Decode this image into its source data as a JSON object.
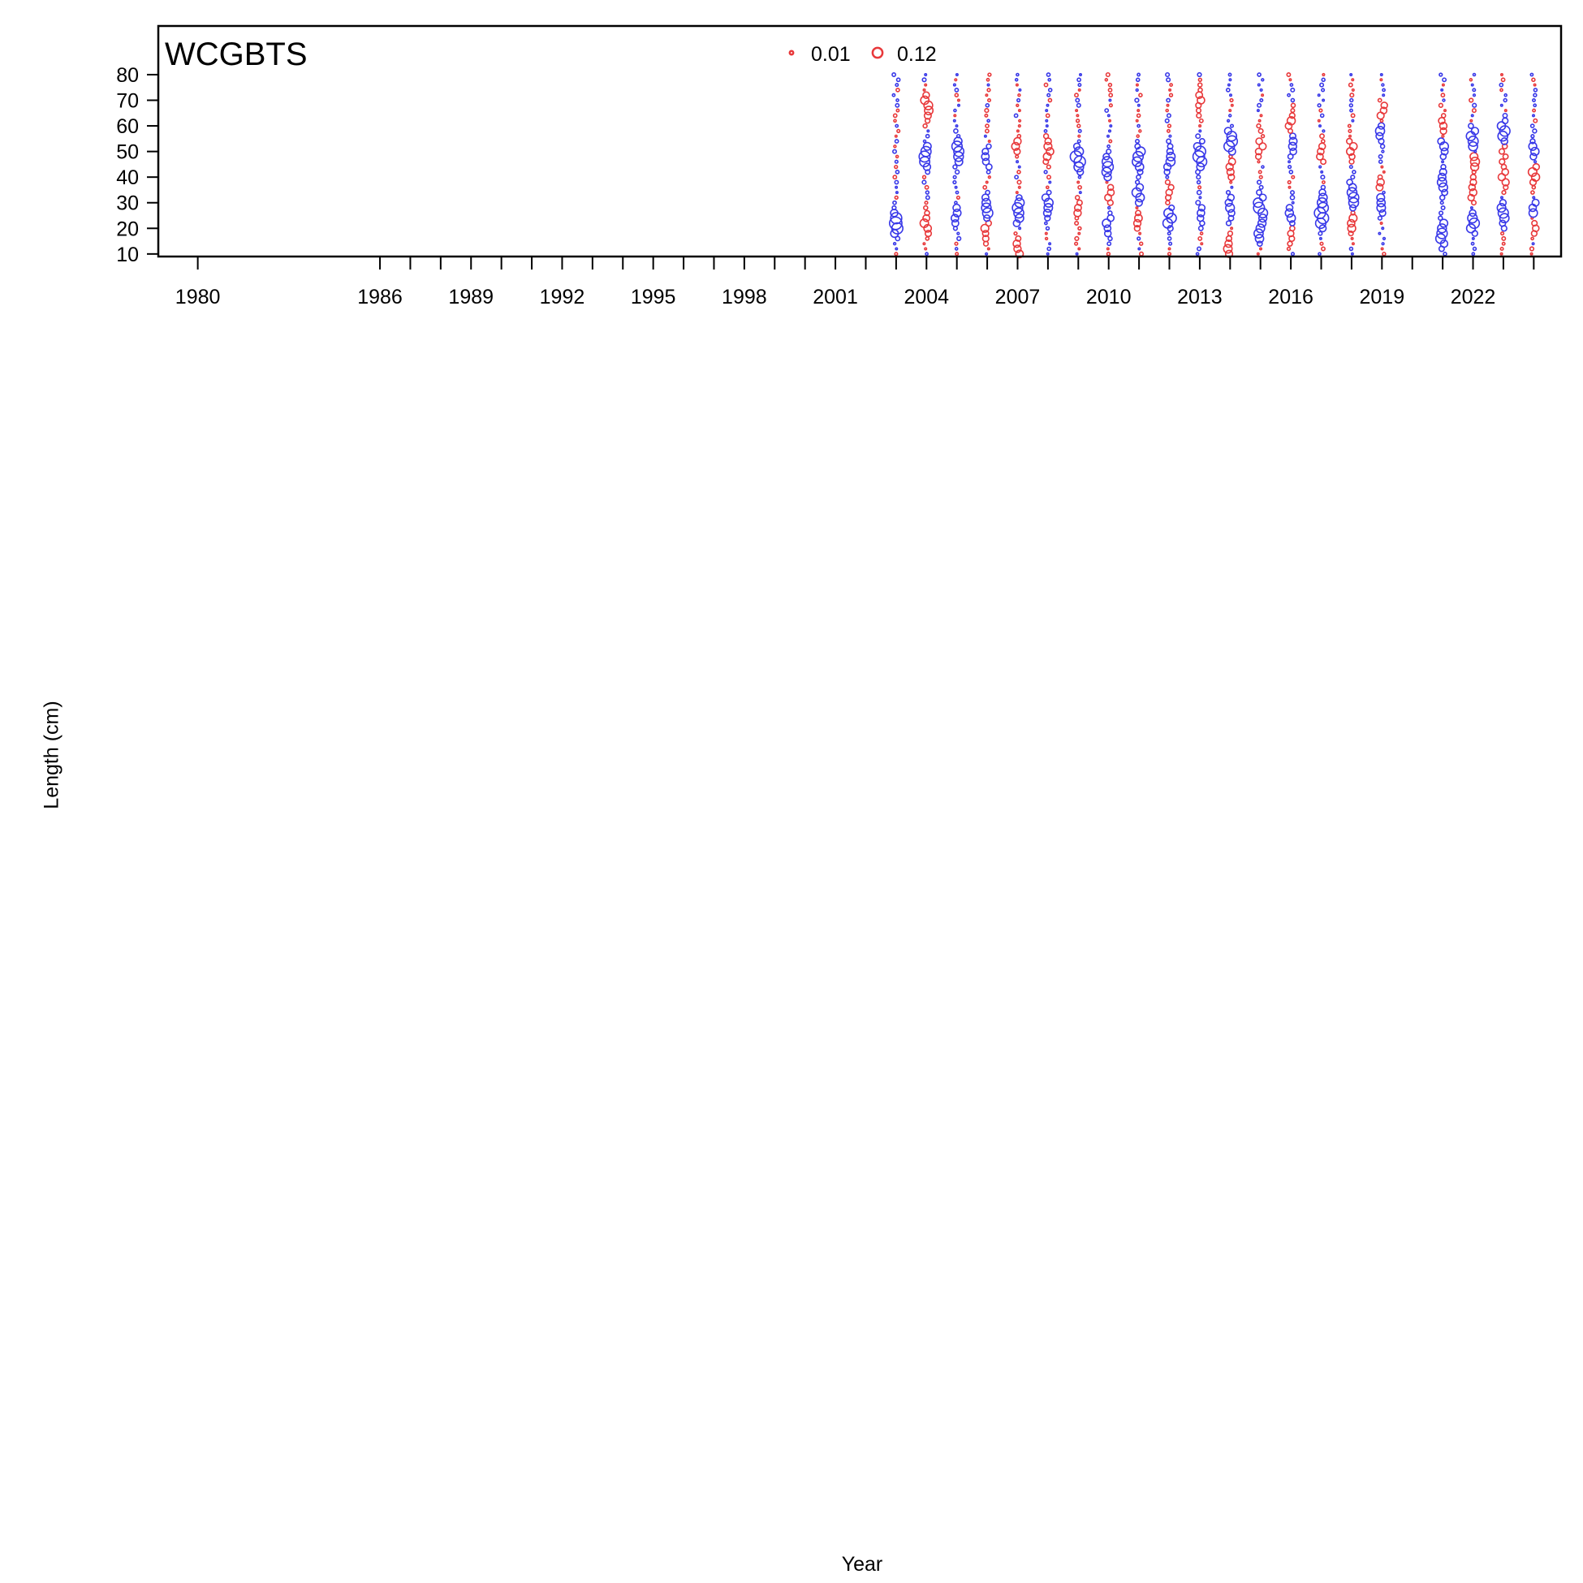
{
  "chart_data": {
    "type": "bubble",
    "title": "WCGBTS",
    "xlabel": "Year",
    "ylabel": "Length (cm)",
    "x_tick_labels": [
      "1980",
      "1986",
      "1989",
      "1992",
      "1995",
      "1998",
      "2001",
      "2004",
      "2007",
      "2010",
      "2013",
      "2016",
      "2019",
      "2022"
    ],
    "x_tick_positions": [
      1980,
      1986,
      1989,
      1992,
      1995,
      1998,
      2001,
      2004,
      2007,
      2010,
      2013,
      2016,
      2019,
      2022
    ],
    "x_minor_ticks": [
      1980,
      1986,
      1987,
      1988,
      1989,
      1990,
      1991,
      1992,
      1993,
      1994,
      1995,
      1996,
      1997,
      1998,
      1999,
      2000,
      2001,
      2002,
      2003,
      2004,
      2005,
      2006,
      2007,
      2008,
      2009,
      2010,
      2011,
      2012,
      2013,
      2014,
      2015,
      2016,
      2017,
      2018,
      2019,
      2020,
      2021,
      2022,
      2023,
      2024
    ],
    "xlim": [
      1978.7,
      2024.9
    ],
    "y_ticks": [
      10,
      20,
      30,
      40,
      50,
      60,
      70,
      80
    ],
    "ylim": [
      9,
      99
    ],
    "legend": {
      "placement": "top-center",
      "entries": [
        "0.01",
        "0.12"
      ]
    },
    "colors": {
      "negative": "#e8383a",
      "positive": "#3838e8"
    },
    "length_bins": [
      10,
      12,
      14,
      16,
      18,
      20,
      22,
      24,
      26,
      28,
      30,
      32,
      34,
      36,
      38,
      40,
      42,
      44,
      46,
      48,
      50,
      52,
      54,
      56,
      58,
      60,
      62,
      64,
      66,
      68,
      70,
      72,
      74,
      76,
      78,
      80
    ],
    "years": [
      2003,
      2004,
      2005,
      2006,
      2007,
      2008,
      2009,
      2010,
      2011,
      2012,
      2013,
      2014,
      2015,
      2016,
      2017,
      2018,
      2019,
      2021,
      2022,
      2023,
      2024
    ],
    "modes": [
      [
        [
          22,
          0.09
        ]
      ],
      [
        [
          48,
          0.07
        ],
        [
          68,
          -0.05
        ],
        [
          22,
          -0.04
        ]
      ],
      [
        [
          50,
          0.07
        ],
        [
          25,
          0.04
        ]
      ],
      [
        [
          27,
          0.07
        ],
        [
          48,
          0.04
        ],
        [
          20,
          -0.04
        ]
      ],
      [
        [
          27,
          0.07
        ],
        [
          12,
          -0.04
        ],
        [
          52,
          -0.03
        ]
      ],
      [
        [
          29,
          0.05
        ],
        [
          50,
          -0.04
        ]
      ],
      [
        [
          47,
          0.08
        ],
        [
          28,
          -0.03
        ]
      ],
      [
        [
          44,
          0.07
        ],
        [
          22,
          0.04
        ],
        [
          33,
          -0.03
        ]
      ],
      [
        [
          47,
          0.07
        ],
        [
          33,
          0.05
        ],
        [
          24,
          -0.03
        ]
      ],
      [
        [
          24,
          0.06
        ],
        [
          47,
          0.05
        ],
        [
          34,
          -0.03
        ]
      ],
      [
        [
          48,
          0.08
        ],
        [
          26,
          0.04
        ],
        [
          70,
          -0.03
        ]
      ],
      [
        [
          54,
          0.08
        ],
        [
          28,
          0.04
        ],
        [
          43,
          -0.04
        ],
        [
          12,
          -0.04
        ]
      ],
      [
        [
          28,
          0.07
        ],
        [
          18,
          0.05
        ],
        [
          52,
          -0.03
        ]
      ],
      [
        [
          24,
          0.06
        ],
        [
          53,
          0.05
        ],
        [
          60,
          -0.04
        ],
        [
          20,
          -0.04
        ]
      ],
      [
        [
          24,
          0.07
        ],
        [
          31,
          0.05
        ],
        [
          50,
          -0.03
        ]
      ],
      [
        [
          32,
          0.07
        ],
        [
          22,
          -0.04
        ],
        [
          51,
          -0.03
        ]
      ],
      [
        [
          31,
          0.06
        ],
        [
          58,
          0.05
        ],
        [
          64,
          -0.04
        ],
        [
          36,
          -0.04
        ]
      ],
      [
        [
          18,
          0.07
        ],
        [
          38,
          0.05
        ],
        [
          52,
          0.04
        ],
        [
          60,
          -0.03
        ]
      ],
      [
        [
          54,
          0.07
        ],
        [
          22,
          0.06
        ],
        [
          47,
          -0.05
        ],
        [
          35,
          -0.03
        ]
      ],
      [
        [
          57,
          0.07
        ],
        [
          26,
          0.06
        ],
        [
          40,
          -0.04
        ],
        [
          52,
          -0.03
        ]
      ],
      [
        [
          26,
          0.06
        ],
        [
          22,
          -0.05
        ],
        [
          42,
          -0.05
        ],
        [
          50,
          0.04
        ]
      ]
    ]
  }
}
